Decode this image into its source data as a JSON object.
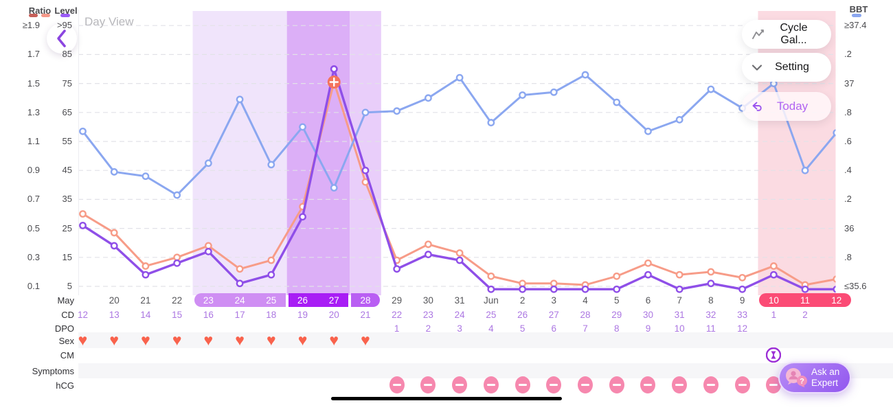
{
  "header": {
    "title": "Day View"
  },
  "legend": {
    "ratio_label": "Ratio",
    "level_label": "Level",
    "bbt_label": "BBT",
    "ratio_dash_colors": [
      "#c65f59",
      "#f5998a"
    ],
    "level_dash_color": "#9b5cf7",
    "bbt_dash_color": "#8ba7f0"
  },
  "buttons": {
    "cycle_gallery": "Cycle Gal...",
    "setting": "Setting",
    "today": "Today",
    "ask_expert_line1": "Ask an",
    "ask_expert_line2": "Expert"
  },
  "axis_left": {
    "ratio_ticks": [
      "≥1.9",
      "1.7",
      "1.5",
      "1.3",
      "1.1",
      "0.9",
      "0.7",
      "0.5",
      "0.3",
      "0.1"
    ],
    "level_ticks": [
      ">95",
      "85",
      "75",
      "65",
      "55",
      "45",
      "35",
      "25",
      "15",
      "5"
    ]
  },
  "axis_right": {
    "bbt_ticks": [
      "≥37.4",
      ".2",
      "37",
      ".8",
      ".6",
      ".4",
      ".2",
      "36",
      ".8",
      "≤35.6"
    ]
  },
  "rows": {
    "month_label": "May",
    "cd_label": "CD",
    "dpo_label": "DPO",
    "sex_label": "Sex",
    "cm_label": "CM",
    "symptoms_label": "Symptoms",
    "hcg_label": "hCG"
  },
  "chart_data": {
    "type": "line",
    "date_labels": [
      "",
      "20",
      "21",
      "22",
      "23",
      "24",
      "25",
      "26",
      "27",
      "28",
      "29",
      "30",
      "31",
      "Jun",
      "2",
      "3",
      "4",
      "5",
      "6",
      "7",
      "8",
      "9",
      "10",
      "11",
      "12"
    ],
    "cd": [
      "12",
      "13",
      "14",
      "15",
      "16",
      "17",
      "18",
      "19",
      "20",
      "21",
      "22",
      "23",
      "24",
      "25",
      "26",
      "27",
      "28",
      "29",
      "30",
      "31",
      "32",
      "33",
      "1",
      "2",
      ""
    ],
    "dpo": [
      "",
      "",
      "",
      "",
      "",
      "",
      "",
      "",
      "",
      "",
      "1",
      "2",
      "3",
      "4",
      "5",
      "6",
      "7",
      "8",
      "9",
      "10",
      "11",
      "12",
      "",
      "",
      ""
    ],
    "axes": {
      "ratio": {
        "min": 0.1,
        "max": 1.9,
        "step": 0.2
      },
      "level": {
        "min": 5,
        "max": 95,
        "step": 10
      },
      "bbt": {
        "min": 35.6,
        "max": 37.4,
        "step": 0.2
      }
    },
    "series": [
      {
        "name": "BBT",
        "axis": "bbt",
        "color": "#8ba7f0",
        "values": [
          36.67,
          36.39,
          36.36,
          36.23,
          36.45,
          36.89,
          36.44,
          36.7,
          36.28,
          36.8,
          36.81,
          36.9,
          37.04,
          36.73,
          36.92,
          36.94,
          37.06,
          36.87,
          36.67,
          36.75,
          36.96,
          36.83,
          37.0,
          36.4,
          36.66
        ]
      },
      {
        "name": "Ratio",
        "axis": "ratio",
        "color": "#f79c88",
        "values": [
          0.6,
          0.47,
          0.24,
          0.3,
          0.38,
          0.22,
          0.28,
          0.65,
          1.51,
          0.82,
          0.28,
          0.39,
          0.33,
          0.17,
          0.12,
          0.12,
          0.11,
          0.17,
          0.26,
          0.18,
          0.2,
          0.16,
          0.24,
          0.11,
          0.15
        ]
      },
      {
        "name": "Level",
        "axis": "level",
        "color": "#8f4fe8",
        "values": [
          26,
          19,
          9,
          13,
          17,
          6,
          9,
          29,
          80,
          45,
          11,
          16,
          14,
          4,
          4,
          4,
          4,
          4,
          9,
          4,
          6,
          4,
          9,
          4,
          4
        ]
      }
    ],
    "peak_marker": {
      "col": 8,
      "symbol": "+",
      "color": "#f4735c"
    },
    "bands": [
      {
        "name": "fertile-window",
        "start_col": 4,
        "end_col": 6,
        "color": "#f0e4fb"
      },
      {
        "name": "peak-days",
        "start_col": 7,
        "end_col": 8,
        "color": "#dcaff7"
      },
      {
        "name": "fertile-end",
        "start_col": 9,
        "end_col": 9,
        "color": "#e9cefa"
      },
      {
        "name": "period-predicted",
        "start_col": 22,
        "end_col": 24,
        "color": "#fbdbe2"
      }
    ],
    "date_pills": [
      {
        "start_col": 4,
        "end_col": 6,
        "color": "#cf8ef3"
      },
      {
        "start_col": 7,
        "end_col": 8,
        "color": "#a81df5"
      },
      {
        "start_col": 9,
        "end_col": 9,
        "color": "#b95ef3"
      },
      {
        "start_col": 22,
        "end_col": 24,
        "color": "#fb4b75"
      }
    ],
    "sex_heart_cols": [
      0,
      1,
      2,
      3,
      4,
      5,
      6,
      7,
      8,
      9
    ],
    "hcg_negative_cols": [
      10,
      11,
      12,
      13,
      14,
      15,
      16,
      17,
      18,
      19,
      20,
      21,
      22,
      23
    ],
    "cm_icon_col": 22
  }
}
